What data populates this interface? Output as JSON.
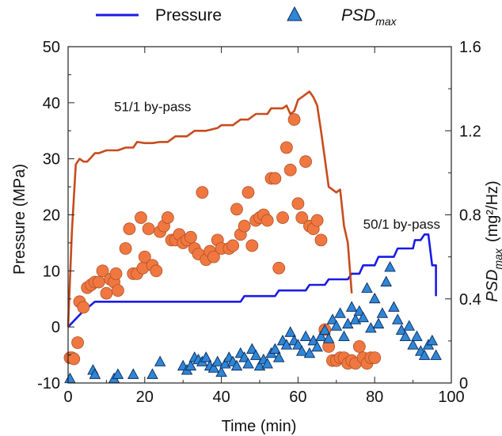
{
  "chart_data": {
    "type": "scatter",
    "xlabel": "Time (min)",
    "ylabel_left": "Pressure (MPa)",
    "ylabel_right_main": "PSD",
    "ylabel_right_sub": "max",
    "ylabel_right_unit": "(mg²/Hz)",
    "xlim": [
      0,
      100
    ],
    "ylim_left": [
      -10,
      50
    ],
    "ylim_right": [
      0,
      1.6
    ],
    "x_ticks": [
      0,
      20,
      40,
      60,
      80,
      100
    ],
    "y_left_ticks": [
      -10,
      0,
      10,
      20,
      30,
      40,
      50
    ],
    "y_right_ticks": [
      0,
      0.4,
      0.8,
      1.2,
      1.6
    ],
    "y_right_tick_labels": [
      "0",
      "0.4",
      "0.8",
      "1.2",
      "1.6"
    ],
    "grid": false,
    "legend": {
      "position": "top",
      "items": [
        {
          "label": "Pressure",
          "marker": "line",
          "color": "#1a1ae6"
        },
        {
          "label_main": "PSD",
          "label_sub": "max",
          "marker": "triangle",
          "color": "#2e86d6"
        }
      ]
    },
    "annotations": [
      {
        "text": "51/1 by-pass",
        "x": 12,
        "y": 38.5
      },
      {
        "text": "50/1 by-pass",
        "x": 77,
        "y": 17.5
      }
    ],
    "series": [
      {
        "name": "Pressure",
        "axis": "left",
        "kind": "line",
        "color": "#1a1ae6",
        "points": [
          [
            0,
            0
          ],
          [
            3.5,
            2.5
          ],
          [
            7,
            4.5
          ],
          [
            45,
            4.5
          ],
          [
            46,
            5.5
          ],
          [
            54,
            5.5
          ],
          [
            55,
            6.5
          ],
          [
            62,
            6.5
          ],
          [
            63,
            7.5
          ],
          [
            67,
            7.5
          ],
          [
            68,
            8.5
          ],
          [
            73,
            8.5
          ],
          [
            74,
            9.5
          ],
          [
            76,
            9.5
          ],
          [
            77,
            11
          ],
          [
            80,
            11
          ],
          [
            81,
            12.5
          ],
          [
            85,
            12.5
          ],
          [
            86,
            14
          ],
          [
            90,
            14
          ],
          [
            90.5,
            15.5
          ],
          [
            92,
            15.5
          ],
          [
            93,
            16.5
          ],
          [
            94,
            16.5
          ],
          [
            95,
            11
          ],
          [
            96,
            11
          ],
          [
            96,
            5.5
          ]
        ]
      },
      {
        "name": "51/1 by-pass",
        "axis": "left",
        "kind": "line",
        "color": "#c84b1c",
        "points": [
          [
            0,
            0
          ],
          [
            1,
            17
          ],
          [
            2,
            29
          ],
          [
            3,
            30
          ],
          [
            4,
            29.5
          ],
          [
            5,
            29.5
          ],
          [
            7,
            31
          ],
          [
            8,
            31
          ],
          [
            10,
            31.5
          ],
          [
            13,
            31.5
          ],
          [
            15,
            32
          ],
          [
            17,
            32
          ],
          [
            18,
            33
          ],
          [
            20,
            32.8
          ],
          [
            22,
            32.8
          ],
          [
            24,
            33
          ],
          [
            26,
            33
          ],
          [
            28,
            34
          ],
          [
            31,
            34
          ],
          [
            33,
            35
          ],
          [
            36,
            35
          ],
          [
            39,
            35.5
          ],
          [
            40,
            36
          ],
          [
            43,
            36
          ],
          [
            45,
            37
          ],
          [
            47,
            37
          ],
          [
            49,
            38
          ],
          [
            52,
            38
          ],
          [
            53,
            39
          ],
          [
            56,
            39
          ],
          [
            57,
            39.5
          ],
          [
            58,
            38
          ],
          [
            59,
            38.5
          ],
          [
            60,
            40.5
          ],
          [
            62,
            41.5
          ],
          [
            63,
            42
          ],
          [
            64,
            41
          ],
          [
            65,
            39.5
          ],
          [
            66,
            35
          ],
          [
            67,
            30
          ],
          [
            68,
            25
          ],
          [
            70,
            24
          ],
          [
            71,
            24.5
          ],
          [
            72,
            18
          ],
          [
            73,
            15
          ],
          [
            74,
            6
          ]
        ]
      },
      {
        "name": "",
        "axis": "left",
        "kind": "circles",
        "color": "#f07840",
        "stroke": "#b05028",
        "points": [
          [
            0.5,
            -5.5
          ],
          [
            1,
            -5.5
          ],
          [
            1.5,
            -5.7
          ],
          [
            2.5,
            -2.8
          ],
          [
            3,
            4.5
          ],
          [
            4,
            3.5
          ],
          [
            5,
            7
          ],
          [
            6,
            7.5
          ],
          [
            7,
            8
          ],
          [
            8,
            8
          ],
          [
            9,
            10
          ],
          [
            10,
            6
          ],
          [
            11,
            8.5
          ],
          [
            12,
            8
          ],
          [
            12.5,
            9.5
          ],
          [
            13,
            6.5
          ],
          [
            15,
            14
          ],
          [
            16,
            17.5
          ],
          [
            17,
            9.5
          ],
          [
            18,
            9.5
          ],
          [
            19,
            19.5
          ],
          [
            19.5,
            10.5
          ],
          [
            20,
            12.5
          ],
          [
            21,
            17.5
          ],
          [
            22,
            11
          ],
          [
            23,
            10
          ],
          [
            24,
            17
          ],
          [
            25,
            18
          ],
          [
            26,
            19.5
          ],
          [
            27,
            15.5
          ],
          [
            28,
            15.5
          ],
          [
            29,
            16.5
          ],
          [
            30,
            15
          ],
          [
            31,
            15.5
          ],
          [
            32,
            16
          ],
          [
            33,
            14
          ],
          [
            34,
            13
          ],
          [
            35,
            24
          ],
          [
            36,
            12
          ],
          [
            37,
            13.5
          ],
          [
            38,
            12.5
          ],
          [
            39,
            15.5
          ],
          [
            40,
            14
          ],
          [
            42,
            14
          ],
          [
            43,
            14.5
          ],
          [
            44,
            21
          ],
          [
            45,
            16.5
          ],
          [
            46,
            18
          ],
          [
            47,
            24
          ],
          [
            48,
            14.5
          ],
          [
            49,
            19
          ],
          [
            50,
            19.5
          ],
          [
            51,
            20
          ],
          [
            52,
            19
          ],
          [
            53,
            26.5
          ],
          [
            54,
            26.5
          ],
          [
            55,
            10.5
          ],
          [
            56,
            19.5
          ],
          [
            57,
            32
          ],
          [
            58,
            28
          ],
          [
            59,
            37
          ],
          [
            60,
            22
          ],
          [
            61,
            19.5
          ],
          [
            62,
            29.5
          ],
          [
            63,
            18
          ],
          [
            64,
            17.5
          ],
          [
            65,
            19
          ],
          [
            66,
            15.5
          ],
          [
            67,
            -0.5
          ],
          [
            68,
            -3.5
          ],
          [
            69,
            -6
          ],
          [
            70,
            -6
          ],
          [
            71,
            -5.5
          ],
          [
            72,
            -5.5
          ],
          [
            73,
            -6.5
          ],
          [
            74,
            -6
          ],
          [
            75,
            -6.5
          ],
          [
            76,
            -3.5
          ],
          [
            77,
            -5.5
          ],
          [
            78,
            -6.5
          ],
          [
            79,
            -5.5
          ],
          [
            80,
            -5.5
          ]
        ]
      },
      {
        "name": "PSD_max",
        "axis": "right",
        "kind": "triangles",
        "color": "#2e86d6",
        "stroke": "#0c2a5a",
        "points": [
          [
            0.5,
            0.02
          ],
          [
            6.5,
            0.06
          ],
          [
            7,
            0.04
          ],
          [
            12,
            0.02
          ],
          [
            13,
            0.04
          ],
          [
            17,
            0.04
          ],
          [
            22,
            0.04
          ],
          [
            24,
            0.1
          ],
          [
            30,
            0.08
          ],
          [
            31,
            0.06
          ],
          [
            32,
            0.08
          ],
          [
            33,
            0.12
          ],
          [
            34,
            0.11
          ],
          [
            35,
            0.1
          ],
          [
            36,
            0.12
          ],
          [
            37,
            0.08
          ],
          [
            38,
            0.07
          ],
          [
            39,
            0.1
          ],
          [
            40,
            0.05
          ],
          [
            41,
            0.09
          ],
          [
            42,
            0.12
          ],
          [
            43,
            0.1
          ],
          [
            44,
            0.08
          ],
          [
            45,
            0.14
          ],
          [
            46,
            0.12
          ],
          [
            47,
            0.09
          ],
          [
            48,
            0.16
          ],
          [
            49,
            0.13
          ],
          [
            50,
            0.08
          ],
          [
            51,
            0.11
          ],
          [
            52,
            0.09
          ],
          [
            53,
            0.14
          ],
          [
            54,
            0.16
          ],
          [
            55,
            0.12
          ],
          [
            56,
            0.2
          ],
          [
            57,
            0.18
          ],
          [
            58,
            0.24
          ],
          [
            59,
            0.2
          ],
          [
            60,
            0.18
          ],
          [
            61,
            0.15
          ],
          [
            62,
            0.22
          ],
          [
            63,
            0.14
          ],
          [
            64,
            0.2
          ],
          [
            65,
            0.17
          ],
          [
            66,
            0.22
          ],
          [
            67,
            0.25
          ],
          [
            68,
            0.21
          ],
          [
            69,
            0.3
          ],
          [
            70,
            0.27
          ],
          [
            71,
            0.33
          ],
          [
            72,
            0.22
          ],
          [
            73,
            0.28
          ],
          [
            74,
            0.36
          ],
          [
            75,
            0.3
          ],
          [
            76,
            0.34
          ],
          [
            77,
            0.31
          ],
          [
            78,
            0.45
          ],
          [
            79,
            0.26
          ],
          [
            80,
            0.4
          ],
          [
            81,
            0.28
          ],
          [
            82,
            0.33
          ],
          [
            83,
            0.48
          ],
          [
            84,
            0.55
          ],
          [
            85,
            0.36
          ],
          [
            86,
            0.3
          ],
          [
            87,
            0.25
          ],
          [
            88,
            0.22
          ],
          [
            89,
            0.27
          ],
          [
            90,
            0.18
          ],
          [
            91,
            0.22
          ],
          [
            92,
            0.15
          ],
          [
            93,
            0.13
          ],
          [
            94,
            0.18
          ],
          [
            95,
            0.2
          ],
          [
            96,
            0.13
          ]
        ]
      }
    ]
  }
}
